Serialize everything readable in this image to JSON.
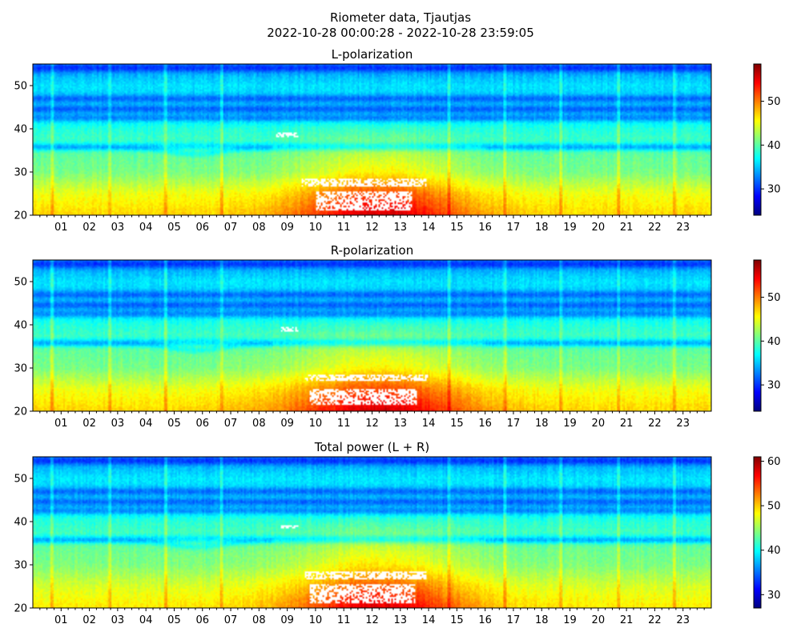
{
  "figure": {
    "title_line1": "Riometer data, Tjautjas",
    "title_line2": "2022-10-28 00:00:28 - 2022-10-28 23:59:05"
  },
  "colormap": {
    "name": "jet",
    "stops": [
      "#00007f",
      "#0000ff",
      "#007fff",
      "#00ffff",
      "#7fff7f",
      "#ffff00",
      "#ff7f00",
      "#ff0000",
      "#7f0000"
    ],
    "saturated_color": "#ffffff"
  },
  "chart_data": [
    {
      "type": "heatmap",
      "title": "L-polarization",
      "x_hours": [
        0,
        24
      ],
      "xticklabels": [
        "01",
        "02",
        "03",
        "04",
        "05",
        "06",
        "07",
        "08",
        "09",
        "10",
        "11",
        "12",
        "13",
        "14",
        "15",
        "16",
        "17",
        "18",
        "19",
        "20",
        "21",
        "22",
        "23"
      ],
      "ylim": [
        20,
        55
      ],
      "yticks": [
        20,
        30,
        40,
        50
      ],
      "colorbar": {
        "range": [
          24,
          58.5
        ],
        "ticks": [
          30,
          40,
          50
        ]
      },
      "features": {
        "base_levels": [
          [
            20,
            47
          ],
          [
            25,
            45
          ],
          [
            30,
            41
          ],
          [
            35,
            40
          ],
          [
            40,
            38
          ],
          [
            45,
            35
          ],
          [
            50,
            36
          ],
          [
            55,
            33
          ]
        ],
        "blue_bands_y": [
          36,
          42.5,
          44.5,
          47,
          54
        ],
        "vertical_streak_hours": [
          0.7,
          2.7,
          4.7,
          6.7,
          14.7,
          16.7,
          18.7,
          20.7,
          22.7
        ],
        "daytime_peak": {
          "center_hour": 12.3,
          "width_hours": 3.0,
          "max_increase": 9
        },
        "saturated_regions": [
          {
            "x": [
              9.5,
              13.9
            ],
            "y": [
              26.5,
              28.5
            ]
          },
          {
            "x": [
              10.0,
              13.4
            ],
            "y": [
              21.0,
              25.5
            ]
          },
          {
            "x": [
              8.6,
              9.4
            ],
            "y": [
              38.0,
              39.0
            ]
          }
        ]
      }
    },
    {
      "type": "heatmap",
      "title": "R-polarization",
      "x_hours": [
        0,
        24
      ],
      "xticklabels": [
        "01",
        "02",
        "03",
        "04",
        "05",
        "06",
        "07",
        "08",
        "09",
        "10",
        "11",
        "12",
        "13",
        "14",
        "15",
        "16",
        "17",
        "18",
        "19",
        "20",
        "21",
        "22",
        "23"
      ],
      "ylim": [
        20,
        55
      ],
      "yticks": [
        20,
        30,
        40,
        50
      ],
      "colorbar": {
        "range": [
          24,
          58.5
        ],
        "ticks": [
          30,
          40,
          50
        ]
      },
      "features": {
        "base_levels": [
          [
            20,
            47
          ],
          [
            25,
            45
          ],
          [
            30,
            41
          ],
          [
            35,
            40
          ],
          [
            40,
            38
          ],
          [
            45,
            35
          ],
          [
            50,
            36
          ],
          [
            55,
            33
          ]
        ],
        "blue_bands_y": [
          36,
          42.5,
          44.5,
          47,
          54
        ],
        "vertical_streak_hours": [
          0.7,
          2.7,
          4.7,
          6.7,
          14.7,
          16.7,
          18.7,
          20.7,
          22.7
        ],
        "daytime_peak": {
          "center_hour": 12.3,
          "width_hours": 3.2,
          "max_increase": 9
        },
        "saturated_regions": [
          {
            "x": [
              9.6,
              14.0
            ],
            "y": [
              27.0,
              28.5
            ]
          },
          {
            "x": [
              9.8,
              13.6
            ],
            "y": [
              21.5,
              25.0
            ]
          },
          {
            "x": [
              8.8,
              9.4
            ],
            "y": [
              38.5,
              39.5
            ]
          }
        ]
      }
    },
    {
      "type": "heatmap",
      "title": "Total power (L + R)",
      "x_hours": [
        0,
        24
      ],
      "xticklabels": [
        "01",
        "02",
        "03",
        "04",
        "05",
        "06",
        "07",
        "08",
        "09",
        "10",
        "11",
        "12",
        "13",
        "14",
        "15",
        "16",
        "17",
        "18",
        "19",
        "20",
        "21",
        "22",
        "23"
      ],
      "ylim": [
        20,
        55
      ],
      "yticks": [
        20,
        30,
        40,
        50
      ],
      "colorbar": {
        "range": [
          27,
          61
        ],
        "ticks": [
          30,
          40,
          50,
          60
        ]
      },
      "features": {
        "base_levels": [
          [
            20,
            49
          ],
          [
            25,
            47
          ],
          [
            30,
            44
          ],
          [
            35,
            43
          ],
          [
            40,
            41
          ],
          [
            45,
            38
          ],
          [
            50,
            39
          ],
          [
            55,
            36
          ]
        ],
        "blue_bands_y": [
          36,
          42.5,
          44.5,
          47,
          54
        ],
        "vertical_streak_hours": [
          0.7,
          2.7,
          4.7,
          6.7,
          14.7,
          16.7,
          18.7,
          20.7,
          22.7
        ],
        "daytime_peak": {
          "center_hour": 12.3,
          "width_hours": 3.1,
          "max_increase": 9
        },
        "saturated_regions": [
          {
            "x": [
              9.6,
              13.9
            ],
            "y": [
              26.8,
              28.5
            ]
          },
          {
            "x": [
              9.8,
              13.5
            ],
            "y": [
              21.0,
              25.5
            ]
          },
          {
            "x": [
              8.8,
              9.4
            ],
            "y": [
              38.5,
              39.3
            ]
          }
        ]
      }
    }
  ]
}
